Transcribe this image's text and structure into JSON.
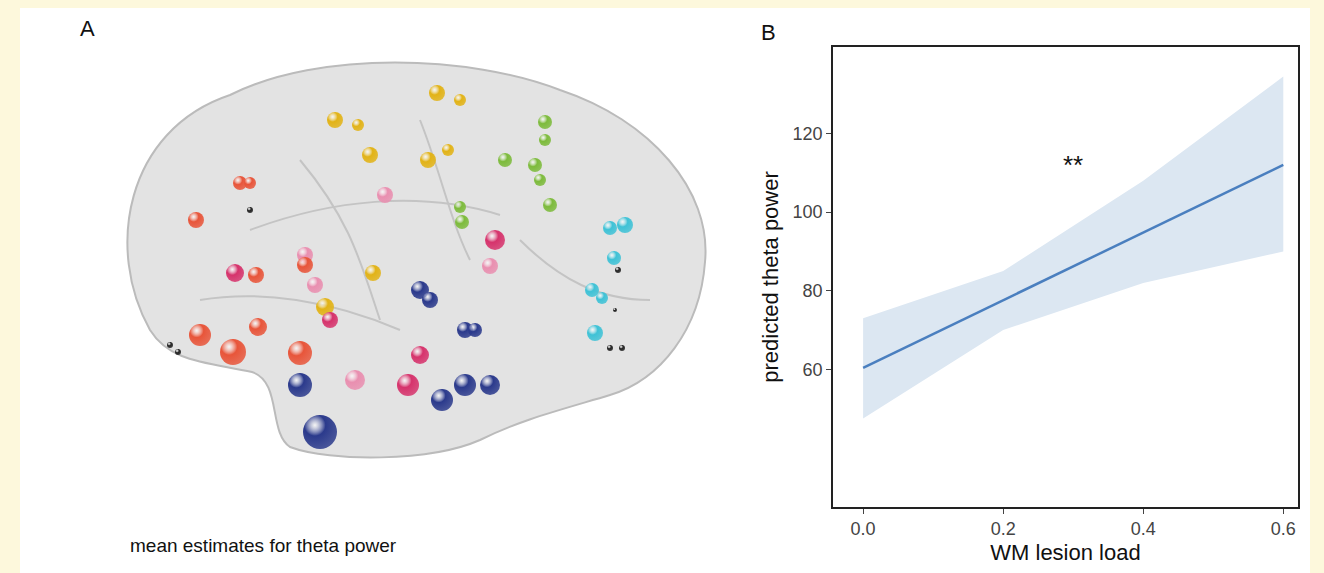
{
  "panel_a": {
    "label": "A",
    "caption": "mean estimates for theta power"
  },
  "chart_data": {
    "type": "line",
    "panel_label": "B",
    "x": [
      0,
      0.2,
      0.4,
      0.6
    ],
    "values": [
      60.4,
      77.6,
      94.8,
      112.0
    ],
    "band": {
      "lower": [
        47.5,
        70,
        82,
        90
      ],
      "upper": [
        73,
        85,
        108,
        134.5
      ],
      "color": "#dce7f2"
    },
    "color": "#4a7fbf",
    "x_label": "WM lesion load",
    "y_label": "predicted theta power",
    "xlim": [
      -0.043,
      0.621
    ],
    "xticks": [
      {
        "value": 0,
        "label": "0.0"
      },
      0.2,
      0.4,
      0.6
    ],
    "ylim": [
      25,
      142
    ],
    "yticks": [
      60,
      80,
      100,
      120
    ],
    "annotations": [
      {
        "text": "**",
        "x": 0.3,
        "y": 112
      }
    ],
    "grid": false
  }
}
